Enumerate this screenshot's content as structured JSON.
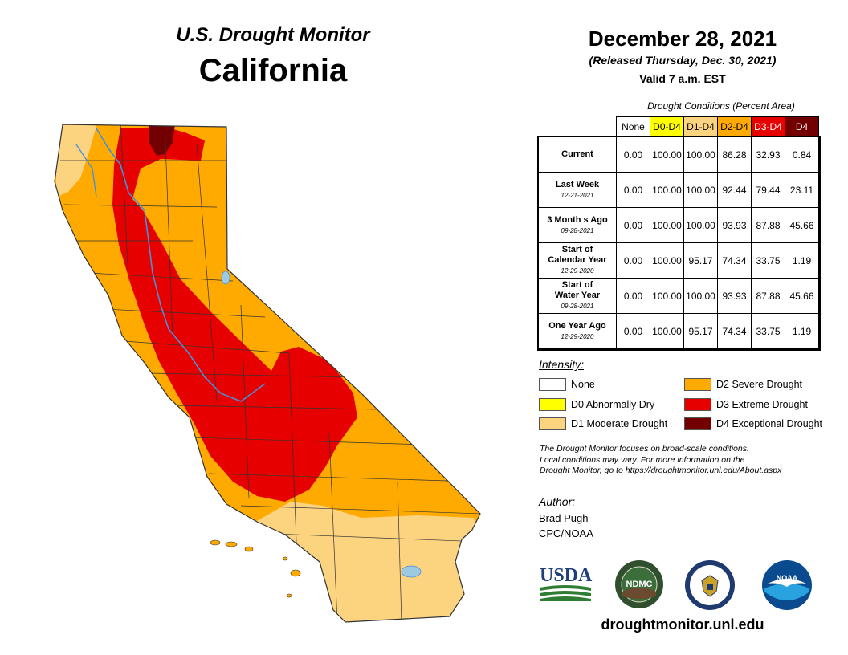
{
  "title": {
    "line1": "U.S. Drought Monitor",
    "line2": "California"
  },
  "header": {
    "date": "December 28, 2021",
    "released": "(Released Thursday, Dec. 30, 2021)",
    "valid": "Valid 7 a.m. EST"
  },
  "table": {
    "caption": "Drought Conditions (Percent Area)",
    "columns": [
      "None",
      "D0-D4",
      "D1-D4",
      "D2-D4",
      "D3-D4",
      "D4"
    ],
    "column_colors": [
      "#ffffff",
      "#ffff00",
      "#fcd37f",
      "#ffaa00",
      "#e60000",
      "#730000"
    ],
    "rows": [
      {
        "label": "Current",
        "label2": "",
        "date": "",
        "values": [
          "0.00",
          "100.00",
          "100.00",
          "86.28",
          "32.93",
          "0.84"
        ]
      },
      {
        "label": "Last Week",
        "label2": "",
        "date": "12-21-2021",
        "values": [
          "0.00",
          "100.00",
          "100.00",
          "92.44",
          "79.44",
          "23.11"
        ]
      },
      {
        "label": "3 Month s Ago",
        "label2": "",
        "date": "09-28-2021",
        "values": [
          "0.00",
          "100.00",
          "100.00",
          "93.93",
          "87.88",
          "45.66"
        ]
      },
      {
        "label": "Start of",
        "label2": "Calendar Year",
        "date": "12-29-2020",
        "values": [
          "0.00",
          "100.00",
          "95.17",
          "74.34",
          "33.75",
          "1.19"
        ]
      },
      {
        "label": "Start of",
        "label2": "Water Year",
        "date": "09-28-2021",
        "values": [
          "0.00",
          "100.00",
          "100.00",
          "93.93",
          "87.88",
          "45.66"
        ]
      },
      {
        "label": "One Year Ago",
        "label2": "",
        "date": "12-29-2020",
        "values": [
          "0.00",
          "100.00",
          "95.17",
          "74.34",
          "33.75",
          "1.19"
        ]
      }
    ]
  },
  "legend": {
    "title": "Intensity:",
    "items": [
      {
        "label": "None",
        "color": "#ffffff"
      },
      {
        "label": "D0 Abnormally Dry",
        "color": "#ffff00"
      },
      {
        "label": "D1 Moderate Drought",
        "color": "#fcd37f"
      },
      {
        "label": "D2 Severe Drought",
        "color": "#ffaa00"
      },
      {
        "label": "D3 Extreme Drought",
        "color": "#e60000"
      },
      {
        "label": "D4 Exceptional Drought",
        "color": "#730000"
      }
    ]
  },
  "note": [
    "The Drought Monitor focuses on broad-scale conditions.",
    "Local conditions may vary. For more information on the",
    "Drought Monitor, go to https://droughtmonitor.unl.edu/About.aspx"
  ],
  "author": {
    "title": "Author:",
    "name": "Brad Pugh",
    "org": "CPC/NOAA"
  },
  "logos": {
    "usda": "USDA",
    "ndmc": "NDMC",
    "noaa": "NOAA"
  },
  "site": "droughtmonitor.unl.edu"
}
